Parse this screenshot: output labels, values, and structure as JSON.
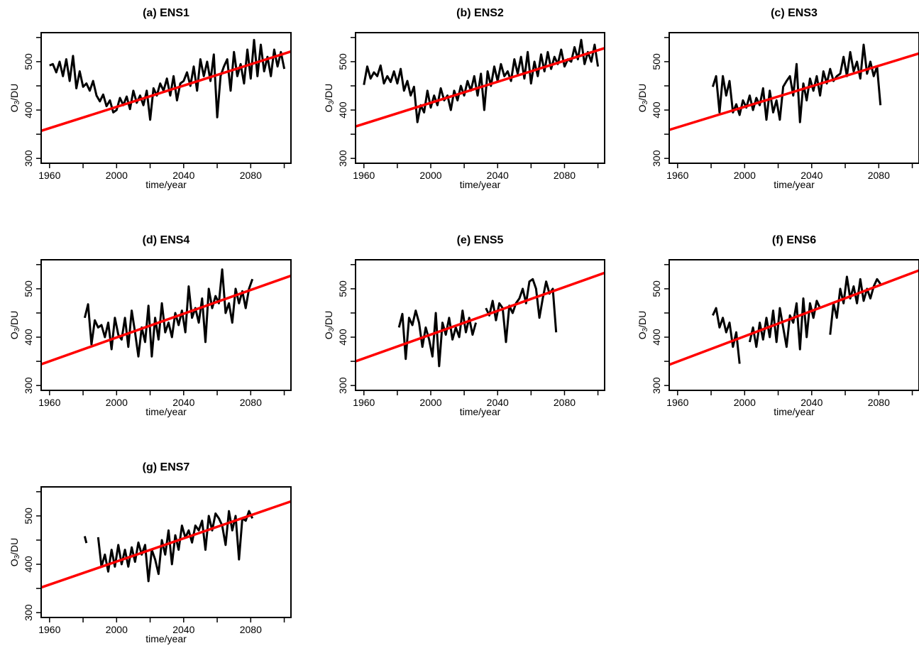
{
  "figure": {
    "xlabel": "time/year",
    "ylabel_main": "O",
    "ylabel_sub": "3",
    "ylabel_tail": "/DU"
  },
  "colors": {
    "series": "#000000",
    "trend": "#ff0000",
    "frame": "#000000"
  },
  "chart_data": [
    {
      "type": "line",
      "title": "(a) ENS1",
      "xlabel": "time/year",
      "ylabel": "O3/DU",
      "xlim": [
        1955,
        2104
      ],
      "ylim": [
        290,
        560
      ],
      "xticks": [
        1960,
        2000,
        2040,
        2080
      ],
      "yticks": [
        300,
        400,
        500
      ],
      "series": [
        {
          "values_x": [
            1960,
            1962,
            1964,
            1966,
            1968,
            1970,
            1972,
            1974,
            1976,
            1978,
            1980,
            1982,
            1984,
            1986,
            1988,
            1990,
            1992,
            1994,
            1996,
            1998,
            2000,
            2002,
            2004,
            2006,
            2008,
            2010,
            2012,
            2014,
            2016,
            2018,
            2020,
            2022,
            2024,
            2026,
            2028,
            2030,
            2032,
            2034,
            2036,
            2038,
            2040,
            2042,
            2044,
            2046,
            2048,
            2050,
            2052,
            2054,
            2056,
            2058,
            2060,
            2062,
            2064,
            2066,
            2068,
            2070,
            2072,
            2074,
            2076,
            2078,
            2080,
            2082,
            2084,
            2086,
            2088,
            2090,
            2092,
            2094,
            2096,
            2098,
            2100
          ],
          "values_y": [
            492,
            495,
            478,
            500,
            470,
            505,
            460,
            512,
            445,
            480,
            448,
            455,
            440,
            460,
            430,
            418,
            432,
            408,
            420,
            395,
            400,
            425,
            410,
            428,
            402,
            440,
            415,
            430,
            410,
            440,
            380,
            445,
            430,
            455,
            440,
            465,
            430,
            470,
            420,
            455,
            460,
            478,
            450,
            490,
            440,
            505,
            470,
            500,
            460,
            515,
            385,
            470,
            490,
            505,
            440,
            520,
            470,
            495,
            455,
            525,
            465,
            545,
            470,
            535,
            480,
            510,
            470,
            525,
            490,
            520,
            485
          ],
          "segments": [
            [
              1960,
              2100
            ]
          ]
        }
      ],
      "trend_line": {
        "x": [
          1955,
          2104
        ],
        "y": [
          357,
          521
        ]
      }
    },
    {
      "type": "line",
      "title": "(b) ENS2",
      "xlabel": "time/year",
      "ylabel": "O3/DU",
      "xlim": [
        1955,
        2104
      ],
      "ylim": [
        290,
        560
      ],
      "xticks": [
        1960,
        2000,
        2040,
        2080
      ],
      "yticks": [
        300,
        400,
        500
      ],
      "series": [
        {
          "values_x": [
            1960,
            1962,
            1964,
            1966,
            1968,
            1970,
            1972,
            1974,
            1976,
            1978,
            1980,
            1982,
            1984,
            1986,
            1988,
            1990,
            1992,
            1994,
            1996,
            1998,
            2000,
            2002,
            2004,
            2006,
            2008,
            2010,
            2012,
            2014,
            2016,
            2018,
            2020,
            2022,
            2024,
            2026,
            2028,
            2030,
            2032,
            2034,
            2036,
            2038,
            2040,
            2042,
            2044,
            2046,
            2048,
            2050,
            2052,
            2054,
            2056,
            2058,
            2060,
            2062,
            2064,
            2066,
            2068,
            2070,
            2072,
            2074,
            2076,
            2078,
            2080,
            2082,
            2084,
            2086,
            2088,
            2090,
            2092,
            2094,
            2096,
            2098,
            2100
          ],
          "values_y": [
            452,
            490,
            465,
            478,
            470,
            492,
            455,
            470,
            458,
            480,
            455,
            485,
            440,
            460,
            430,
            448,
            375,
            410,
            395,
            440,
            405,
            430,
            410,
            445,
            420,
            430,
            400,
            440,
            420,
            450,
            430,
            460,
            440,
            470,
            430,
            475,
            400,
            480,
            450,
            490,
            460,
            495,
            470,
            480,
            460,
            505,
            475,
            510,
            465,
            520,
            455,
            500,
            470,
            515,
            480,
            520,
            485,
            510,
            495,
            525,
            490,
            505,
            500,
            530,
            505,
            545,
            495,
            520,
            500,
            535,
            490
          ],
          "segments": [
            [
              1960,
              2100
            ]
          ]
        }
      ],
      "trend_line": {
        "x": [
          1955,
          2104
        ],
        "y": [
          366,
          528
        ]
      }
    },
    {
      "type": "line",
      "title": "(c) ENS3",
      "xlabel": "time/year",
      "ylabel": "O3/DU",
      "xlim": [
        1955,
        2104
      ],
      "ylim": [
        290,
        560
      ],
      "xticks": [
        1960,
        2000,
        2040,
        2080
      ],
      "yticks": [
        300,
        400,
        500
      ],
      "series": [
        {
          "values_x": [
            1981,
            1983,
            1985,
            1987,
            1989,
            1991,
            1993,
            1995,
            1997,
            1999,
            2001,
            2003,
            2005,
            2007,
            2009,
            2011,
            2013,
            2015,
            2017,
            2019,
            2021,
            2023,
            2025,
            2027,
            2029,
            2031,
            2033,
            2035,
            2037,
            2039,
            2041,
            2043,
            2045,
            2047,
            2049,
            2051,
            2053,
            2055,
            2057,
            2059,
            2061,
            2063,
            2065,
            2067,
            2069,
            2071,
            2073,
            2075,
            2077,
            2079,
            2081
          ],
          "values_y": [
            448,
            470,
            395,
            470,
            430,
            460,
            395,
            412,
            390,
            420,
            405,
            430,
            400,
            425,
            410,
            445,
            380,
            440,
            395,
            420,
            380,
            448,
            460,
            470,
            430,
            495,
            375,
            455,
            420,
            465,
            440,
            470,
            430,
            480,
            455,
            485,
            460,
            470,
            475,
            510,
            470,
            520,
            480,
            500,
            465,
            535,
            475,
            500,
            470,
            490,
            410
          ],
          "segments": [
            [
              1981,
              2081
            ]
          ]
        }
      ],
      "trend_line": {
        "x": [
          1955,
          2104
        ],
        "y": [
          359,
          517
        ]
      }
    },
    {
      "type": "line",
      "title": "(d) ENS4",
      "xlabel": "time/year",
      "ylabel": "O3/DU",
      "xlim": [
        1955,
        2104
      ],
      "ylim": [
        290,
        560
      ],
      "xticks": [
        1960,
        2000,
        2040,
        2080
      ],
      "yticks": [
        300,
        400,
        500
      ],
      "series": [
        {
          "values_x": [
            1981,
            1983,
            1985,
            1987,
            1989,
            1991,
            1993,
            1995,
            1997,
            1999,
            2001,
            2003,
            2005,
            2007,
            2009,
            2011,
            2013,
            2015,
            2017,
            2019,
            2021,
            2023,
            2025,
            2027,
            2029,
            2031,
            2033,
            2035,
            2037,
            2039,
            2041,
            2043,
            2045,
            2047,
            2049,
            2051,
            2053,
            2055,
            2057,
            2059,
            2061,
            2063,
            2065,
            2067,
            2069,
            2071,
            2073,
            2075,
            2077,
            2079,
            2081
          ],
          "values_y": [
            440,
            468,
            385,
            435,
            420,
            425,
            400,
            430,
            375,
            440,
            405,
            395,
            440,
            380,
            455,
            410,
            360,
            420,
            390,
            465,
            360,
            440,
            395,
            470,
            410,
            430,
            400,
            450,
            425,
            455,
            410,
            505,
            440,
            460,
            430,
            480,
            390,
            500,
            460,
            485,
            470,
            540,
            450,
            470,
            430,
            500,
            470,
            495,
            460,
            500,
            520
          ],
          "segments": [
            [
              1981,
              2081
            ]
          ]
        }
      ],
      "trend_line": {
        "x": [
          1955,
          2104
        ],
        "y": [
          344,
          527
        ]
      }
    },
    {
      "type": "line",
      "title": "(e) ENS5",
      "xlabel": "time/year",
      "ylabel": "O3/DU",
      "xlim": [
        1955,
        2104
      ],
      "ylim": [
        290,
        560
      ],
      "xticks": [
        1960,
        2000,
        2040,
        2080
      ],
      "yticks": [
        300,
        400,
        500
      ],
      "series": [
        {
          "values_x": [
            1981,
            1983,
            1985,
            1987,
            1989,
            1991,
            1993,
            1995,
            1997,
            1999,
            2001,
            2003,
            2005,
            2007,
            2009,
            2011,
            2013,
            2015,
            2017,
            2019,
            2021,
            2023,
            2025,
            2027,
            2033,
            2035,
            2037,
            2039,
            2041,
            2043,
            2045,
            2047,
            2049,
            2051,
            2053,
            2055,
            2057,
            2059,
            2061,
            2063,
            2065,
            2067,
            2069,
            2071,
            2073,
            2075
          ],
          "values_y": [
            420,
            448,
            355,
            440,
            425,
            455,
            430,
            380,
            420,
            395,
            360,
            450,
            340,
            430,
            405,
            440,
            395,
            420,
            400,
            455,
            410,
            440,
            405,
            430,
            460,
            445,
            475,
            435,
            470,
            460,
            390,
            465,
            450,
            470,
            480,
            500,
            470,
            515,
            520,
            500,
            440,
            480,
            515,
            490,
            500,
            410
          ],
          "segments": [
            [
              1981,
              2027
            ],
            [
              2033,
              2075
            ]
          ]
        }
      ],
      "trend_line": {
        "x": [
          1955,
          2104
        ],
        "y": [
          350,
          533
        ]
      }
    },
    {
      "type": "line",
      "title": "(f) ENS6",
      "xlabel": "time/year",
      "ylabel": "O3/DU",
      "xlim": [
        1955,
        2104
      ],
      "ylim": [
        290,
        560
      ],
      "xticks": [
        1960,
        2000,
        2040,
        2080
      ],
      "yticks": [
        300,
        400,
        500
      ],
      "series": [
        {
          "values_x": [
            1981,
            1983,
            1985,
            1987,
            1989,
            1991,
            1993,
            1995,
            1997,
            2003,
            2005,
            2007,
            2009,
            2011,
            2013,
            2015,
            2017,
            2019,
            2021,
            2023,
            2025,
            2027,
            2029,
            2031,
            2033,
            2035,
            2037,
            2039,
            2041,
            2043,
            2045,
            2051,
            2053,
            2055,
            2057,
            2059,
            2061,
            2063,
            2065,
            2067,
            2069,
            2071,
            2073,
            2075,
            2077,
            2079,
            2081
          ],
          "values_y": [
            445,
            460,
            420,
            440,
            410,
            430,
            380,
            410,
            345,
            390,
            420,
            380,
            430,
            395,
            440,
            400,
            455,
            390,
            460,
            420,
            380,
            445,
            430,
            470,
            375,
            480,
            400,
            470,
            440,
            475,
            460,
            405,
            470,
            440,
            500,
            470,
            525,
            480,
            505,
            470,
            520,
            475,
            500,
            480,
            505,
            520,
            510
          ],
          "segments": [
            [
              1981,
              1997
            ],
            [
              2003,
              2045
            ],
            [
              2051,
              2081
            ]
          ]
        }
      ],
      "trend_line": {
        "x": [
          1955,
          2104
        ],
        "y": [
          343,
          538
        ]
      }
    },
    {
      "type": "line",
      "title": "(g) ENS7",
      "xlabel": "time/year",
      "ylabel": "O3/DU",
      "xlim": [
        1955,
        2104
      ],
      "ylim": [
        290,
        560
      ],
      "xticks": [
        1960,
        2000,
        2040,
        2080
      ],
      "yticks": [
        300,
        400,
        500
      ],
      "series": [
        {
          "values_x": [
            1981,
            1982,
            1989,
            1991,
            1993,
            1995,
            1997,
            1999,
            2001,
            2003,
            2005,
            2007,
            2009,
            2011,
            2013,
            2015,
            2017,
            2019,
            2021,
            2023,
            2025,
            2027,
            2029,
            2031,
            2033,
            2035,
            2037,
            2039,
            2041,
            2043,
            2045,
            2047,
            2049,
            2051,
            2053,
            2055,
            2057,
            2059,
            2061,
            2063,
            2065,
            2067,
            2069,
            2071,
            2073,
            2075,
            2077,
            2079,
            2081
          ],
          "values_y": [
            458,
            444,
            456,
            395,
            420,
            385,
            430,
            395,
            440,
            400,
            430,
            395,
            435,
            405,
            445,
            420,
            440,
            365,
            430,
            410,
            380,
            450,
            420,
            470,
            400,
            460,
            430,
            480,
            455,
            470,
            445,
            480,
            470,
            490,
            430,
            500,
            470,
            505,
            495,
            480,
            440,
            510,
            470,
            500,
            410,
            495,
            490,
            510,
            495
          ],
          "segments": [
            [
              1981,
              1982
            ],
            [
              1989,
              2081
            ]
          ]
        }
      ],
      "trend_line": {
        "x": [
          1955,
          2104
        ],
        "y": [
          352,
          530
        ]
      }
    }
  ]
}
